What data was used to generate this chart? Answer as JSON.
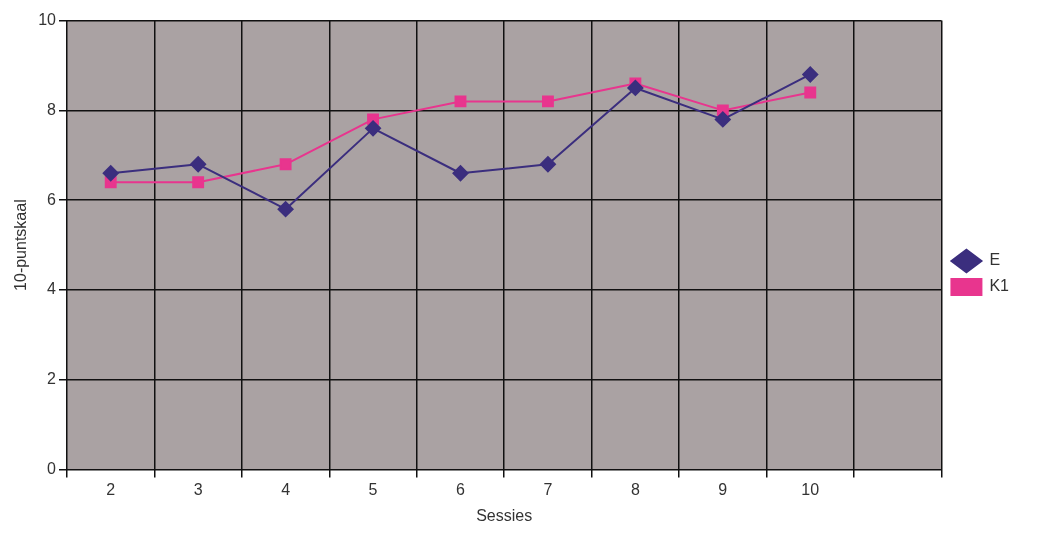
{
  "chart_data": {
    "type": "line",
    "xlabel": "Sessies",
    "ylabel": "10-puntskaal",
    "categories": [
      "2",
      "3",
      "4",
      "5",
      "6",
      "7",
      "8",
      "9",
      "10",
      null
    ],
    "series": [
      {
        "name": "E",
        "color": "#3b2e7e",
        "marker": "diamond",
        "values": [
          6.6,
          6.8,
          5.8,
          7.6,
          6.6,
          6.8,
          8.5,
          7.8,
          8.8,
          null
        ]
      },
      {
        "name": "K1",
        "color": "#e8358e",
        "marker": "square",
        "values": [
          6.4,
          6.4,
          6.8,
          7.8,
          8.2,
          8.2,
          8.6,
          8.0,
          8.4,
          null
        ]
      }
    ],
    "ylim": [
      0,
      10
    ],
    "yticks": [
      0,
      2,
      4,
      6,
      8,
      10
    ],
    "grid": true,
    "legend": "right",
    "line_style": "solid"
  }
}
